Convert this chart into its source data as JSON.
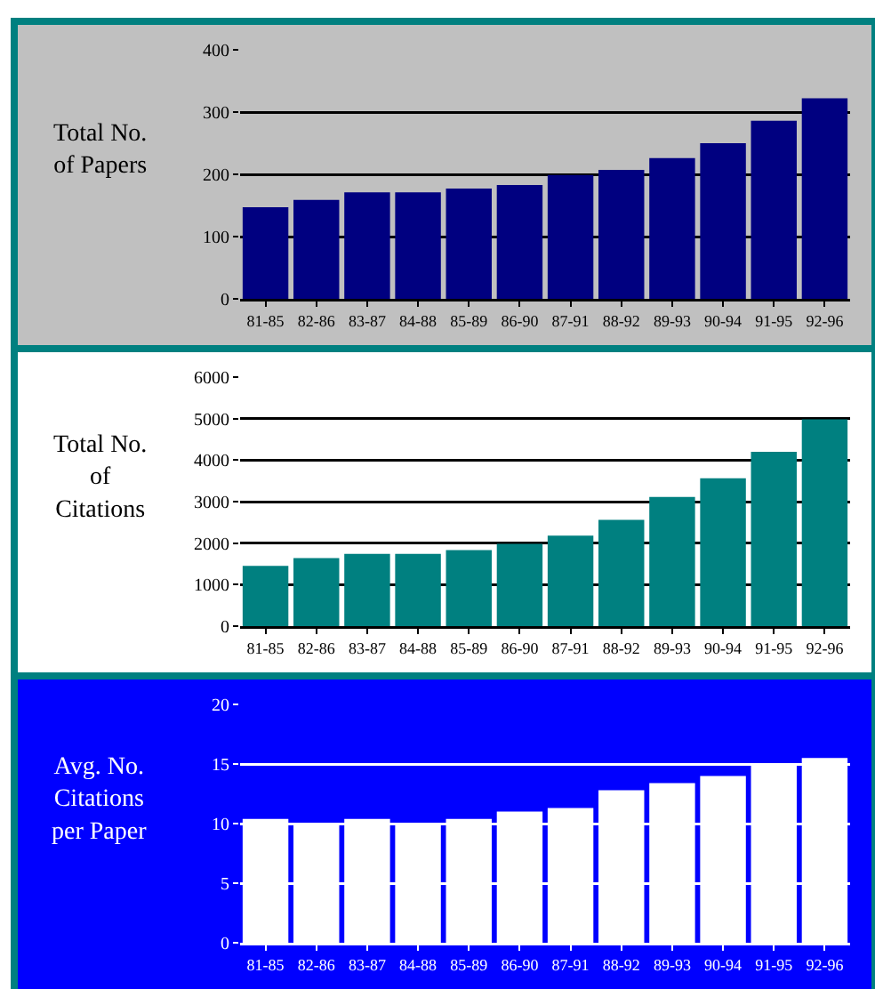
{
  "chart_data": [
    {
      "type": "bar",
      "ylabel": "Total No. of Papers",
      "categories": [
        "81-85",
        "82-86",
        "83-87",
        "84-88",
        "85-89",
        "86-90",
        "87-91",
        "88-92",
        "89-93",
        "90-94",
        "91-95",
        "92-96"
      ],
      "values": [
        147,
        159,
        171,
        171,
        177,
        183,
        199,
        207,
        226,
        250,
        286,
        322
      ],
      "color": "#000080",
      "ylim": [
        0,
        400
      ],
      "yticks": [
        0,
        100,
        200,
        300,
        400
      ],
      "grid": "y"
    },
    {
      "type": "bar",
      "ylabel": "Total No. of Citations",
      "categories": [
        "81-85",
        "82-86",
        "83-87",
        "84-88",
        "85-89",
        "86-90",
        "87-91",
        "88-92",
        "89-93",
        "90-94",
        "91-95",
        "92-96"
      ],
      "values": [
        1450,
        1640,
        1740,
        1740,
        1830,
        1980,
        2180,
        2560,
        3110,
        3560,
        4200,
        4980
      ],
      "color": "#008080",
      "ylim": [
        0,
        6000
      ],
      "yticks": [
        0,
        1000,
        2000,
        3000,
        4000,
        5000,
        6000
      ],
      "grid": "y"
    },
    {
      "type": "bar",
      "ylabel": "Avg. No. Citations per Paper",
      "categories": [
        "81-85",
        "82-86",
        "83-87",
        "84-88",
        "85-89",
        "86-90",
        "87-91",
        "88-92",
        "89-93",
        "90-94",
        "91-95",
        "92-96"
      ],
      "values": [
        10.4,
        10.0,
        10.4,
        10.0,
        10.4,
        11.0,
        11.3,
        12.8,
        13.4,
        14.0,
        14.9,
        15.5
      ],
      "color": "#ffffff",
      "ylim": [
        0,
        20
      ],
      "yticks": [
        0,
        5,
        10,
        15,
        20
      ],
      "grid": "y"
    }
  ]
}
